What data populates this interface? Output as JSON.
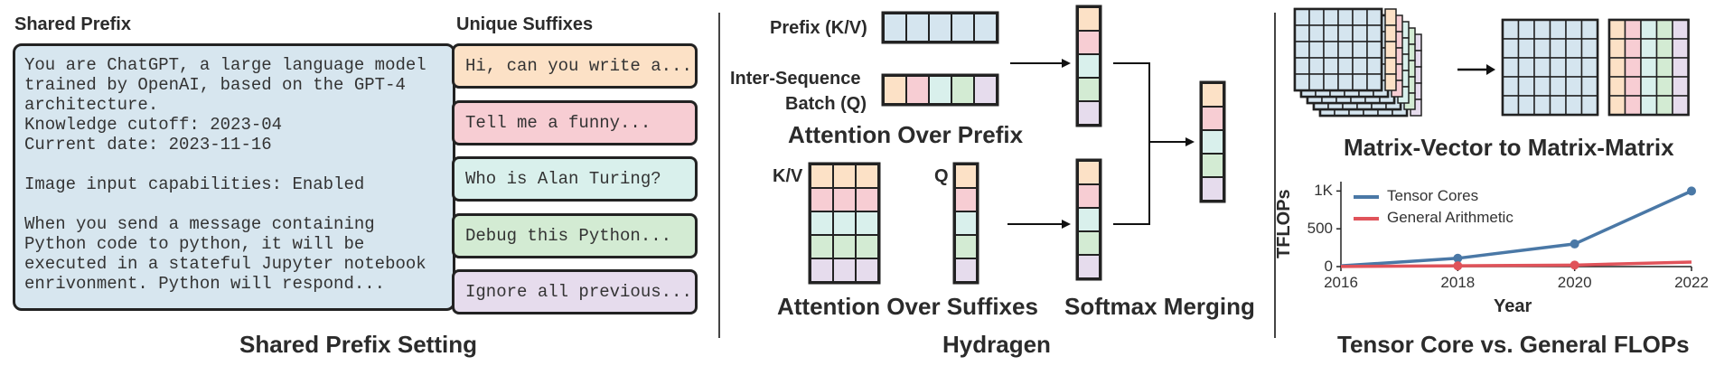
{
  "shared_prefix_panel": {
    "title": "Shared Prefix",
    "prefix_lines": [
      "You are ChatGPT, a large language model",
      "trained by OpenAI, based on the GPT-4",
      "architecture.",
      "Knowledge cutoff: 2023-04",
      "Current date: 2023-11-16",
      "",
      "Image input capabilities: Enabled",
      "",
      "When you send a message containing",
      "Python code to python, it will be",
      "executed in a stateful Jupyter notebook",
      "enrivonment. Python will respond..."
    ],
    "suffix_title": "Unique Suffixes",
    "suffixes": [
      {
        "text": "Hi, can you write a...",
        "color": "#fce1c6"
      },
      {
        "text": "Tell me a funny...",
        "color": "#f7cdd3"
      },
      {
        "text": "Who is Alan Turing?",
        "color": "#d9f0ec"
      },
      {
        "text": "Debug this Python...",
        "color": "#d3ebd3"
      },
      {
        "text": "Ignore all previous...",
        "color": "#e6dced"
      }
    ],
    "caption": "Shared Prefix Setting"
  },
  "hydragen_panel": {
    "prefix_kv_label": "Prefix (K/V)",
    "batch_label_line1": "Inter-Sequence",
    "batch_label_line2": "Batch (Q)",
    "attention_prefix_label": "Attention Over Prefix",
    "kv_label": "K/V",
    "q_label": "Q",
    "attention_suffix_label": "Attention Over Suffixes",
    "softmax_label": "Softmax Merging",
    "caption": "Hydragen"
  },
  "flops_panel": {
    "matrix_label": "Matrix-Vector to Matrix-Matrix",
    "caption": "Tensor Core vs. General FLOPs"
  },
  "colors": {
    "blue_cell": "#d5e5ef",
    "orange": "#fce1c6",
    "pink": "#f7cdd3",
    "teal": "#d9f0ec",
    "green": "#d3ebd3",
    "purple": "#e6dced",
    "tensor_line": "#4a78a6",
    "general_line": "#e0535a"
  },
  "chart_data": {
    "type": "line",
    "x": [
      2016,
      2018,
      2020,
      2022
    ],
    "xlim": [
      2016,
      2022
    ],
    "ylim": [
      0,
      1100
    ],
    "xlabel": "Year",
    "ylabel": "TFLOPs",
    "x_ticks": [
      "2016",
      "2018",
      "2020",
      "2022"
    ],
    "y_ticks": [
      {
        "value": 0,
        "label": "0"
      },
      {
        "value": 500,
        "label": "500"
      },
      {
        "value": 1000,
        "label": "1K"
      }
    ],
    "legend_placement": "top-left",
    "series": [
      {
        "name": "Tensor Cores",
        "color": "#4a78a6",
        "values": [
          10,
          110,
          300,
          1000
        ],
        "markers": [
          2018,
          2020,
          2022
        ]
      },
      {
        "name": "General Arithmetic",
        "color": "#e0535a",
        "values": [
          2,
          10,
          20,
          60
        ],
        "markers": [
          2018,
          2020
        ]
      }
    ]
  }
}
